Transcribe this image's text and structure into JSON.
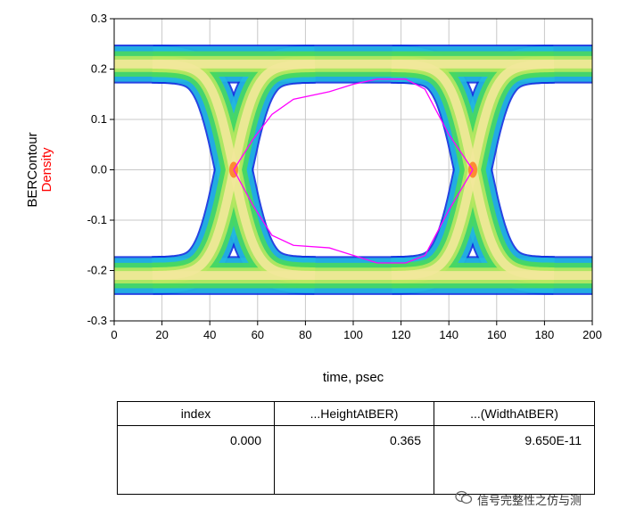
{
  "chart_data": {
    "type": "eye-diagram",
    "xlabel": "time, psec",
    "ylabel_lines": [
      "BERContour",
      "Density"
    ],
    "xlim": [
      0,
      200
    ],
    "ylim": [
      -0.3,
      0.3
    ],
    "x_ticks": [
      "0",
      "20",
      "40",
      "60",
      "80",
      "100",
      "120",
      "140",
      "160",
      "180",
      "200"
    ],
    "y_ticks": [
      "0.3",
      "0.2",
      "0.1",
      "0.0",
      "-0.1",
      "-0.2",
      "-0.3"
    ],
    "grid": true,
    "crossing_times_psec": [
      50,
      150
    ],
    "high_level_band": [
      0.175,
      0.245
    ],
    "low_level_band": [
      -0.245,
      -0.175
    ],
    "ber_contour_top": [
      [
        50,
        0
      ],
      [
        58,
        0.06
      ],
      [
        66,
        0.11
      ],
      [
        75,
        0.14
      ],
      [
        90,
        0.155
      ],
      [
        100,
        0.17
      ],
      [
        110,
        0.18
      ],
      [
        122,
        0.18
      ],
      [
        130,
        0.16
      ],
      [
        140,
        0.07
      ],
      [
        150,
        0
      ]
    ],
    "ber_contour_bottom": [
      [
        50,
        0
      ],
      [
        58,
        -0.07
      ],
      [
        66,
        -0.13
      ],
      [
        75,
        -0.15
      ],
      [
        90,
        -0.155
      ],
      [
        100,
        -0.17
      ],
      [
        110,
        -0.185
      ],
      [
        122,
        -0.185
      ],
      [
        130,
        -0.17
      ],
      [
        140,
        -0.08
      ],
      [
        150,
        0
      ]
    ],
    "colors": {
      "density_core": "#f2e89a",
      "density_mid": "#48d860",
      "density_edge": "#1030e0",
      "ber_contour": "#ff00ff",
      "ylabel_second": "#ff0000",
      "grid": "#c8c8c8"
    }
  },
  "table": {
    "headers": [
      "index",
      "...HeightAtBER)",
      "...(WidthAtBER)"
    ],
    "rows": [
      [
        "0.000",
        "0.365",
        "9.650E-11"
      ]
    ]
  },
  "watermark": {
    "text": "信号完整性之仿与测",
    "icon": "wechat-icon"
  }
}
